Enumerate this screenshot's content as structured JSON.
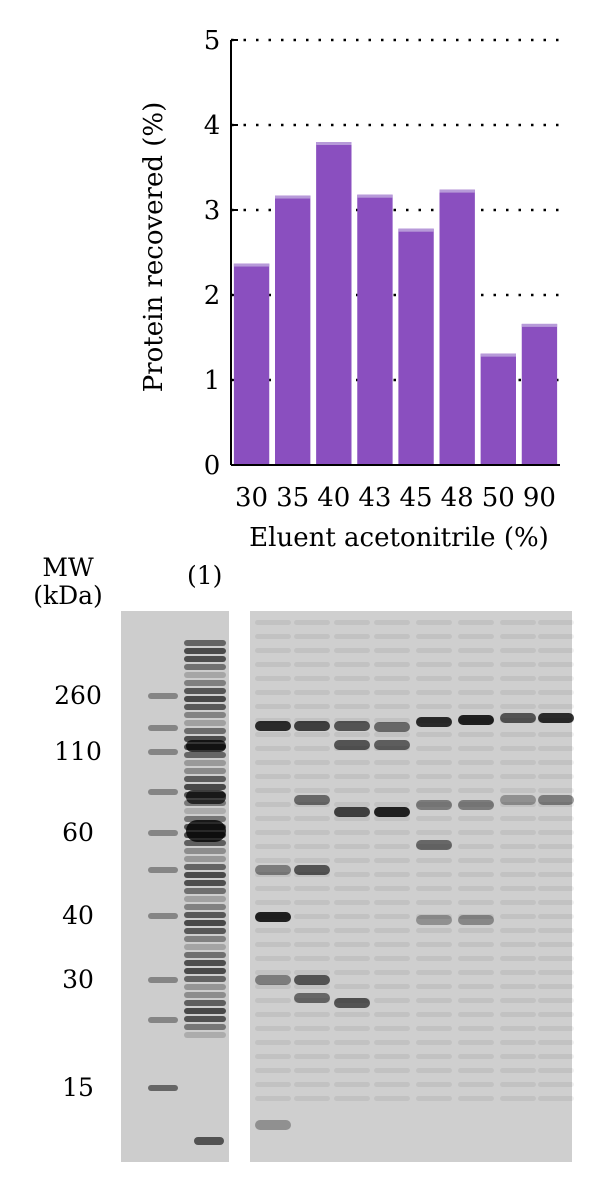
{
  "chart_data": {
    "type": "bar",
    "categories": [
      "30",
      "35",
      "40",
      "43",
      "45",
      "48",
      "50",
      "90"
    ],
    "values": [
      2.37,
      3.17,
      3.8,
      3.18,
      2.78,
      3.24,
      1.31,
      1.66
    ],
    "xlabel": "Eluent acetonitrile (%)",
    "ylabel": "Protein recovered (%)",
    "ylim": [
      0,
      5
    ],
    "yticks": [
      "0",
      "1",
      "2",
      "3",
      "4",
      "5"
    ],
    "grid": "horizontal dotted",
    "bar_color": "#8a4fbf"
  },
  "gel": {
    "mw_label_line1": "MW",
    "mw_label_line2": "(kDa)",
    "lane_label": "(1)",
    "markers": [
      "260",
      "110",
      "60",
      "40",
      "30",
      "15"
    ]
  }
}
